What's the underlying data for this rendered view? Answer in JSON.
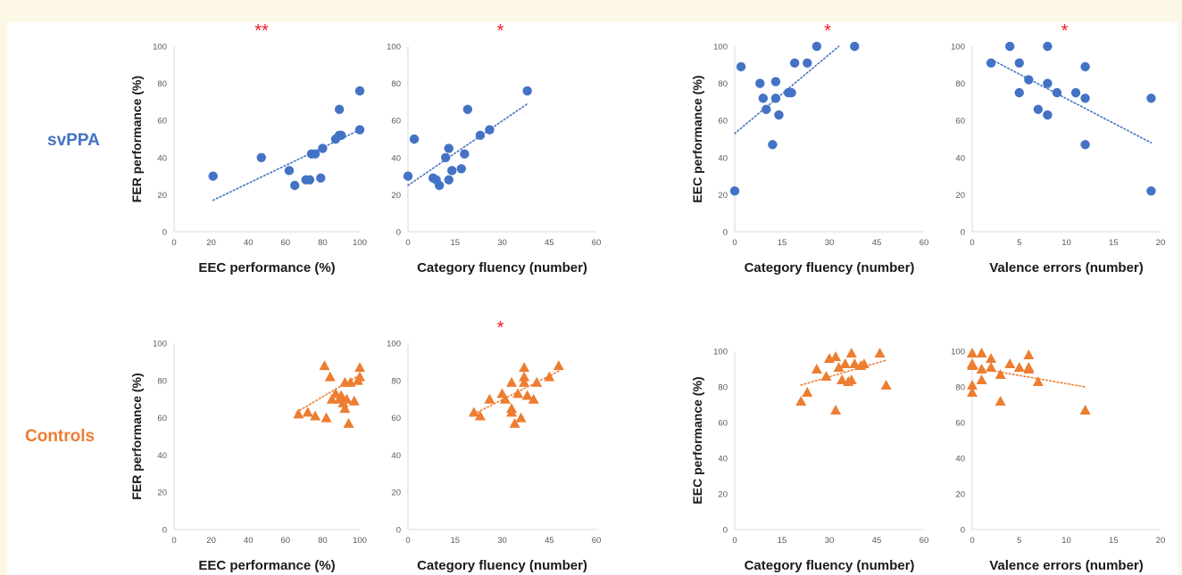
{
  "row_labels": [
    {
      "text": "svPPA",
      "color": "#4472c4"
    },
    {
      "text": "Controls",
      "color": "#ed7d31"
    }
  ],
  "colors": {
    "svppa": "#4472c4",
    "controls": "#ed7d31",
    "significance": "#ee1c25",
    "axis": "#d9d9d9",
    "tick_text": "#595959"
  },
  "chart_data": [
    {
      "id": "svppa-fer-vs-eec",
      "type": "scatter",
      "group": "svppa",
      "marker": "circle",
      "xlabel": "EEC performance (%)",
      "ylabel": "FER performance (%)",
      "xlim": [
        0,
        100
      ],
      "ylim": [
        0,
        100
      ],
      "xticks": [
        0,
        20,
        40,
        60,
        80,
        100
      ],
      "yticks": [
        0,
        20,
        40,
        60,
        80,
        100
      ],
      "significance": "**",
      "grid": false,
      "trendline": {
        "style": "dotted",
        "x": [
          21,
          100
        ],
        "y": [
          17,
          55
        ]
      },
      "points": [
        [
          21,
          30
        ],
        [
          47,
          40
        ],
        [
          62,
          33
        ],
        [
          65,
          25
        ],
        [
          71,
          28
        ],
        [
          73,
          28
        ],
        [
          74,
          42
        ],
        [
          76,
          42
        ],
        [
          79,
          29
        ],
        [
          80,
          45
        ],
        [
          87,
          50
        ],
        [
          89,
          52
        ],
        [
          89,
          66
        ],
        [
          90,
          52
        ],
        [
          100,
          76
        ],
        [
          100,
          55
        ]
      ]
    },
    {
      "id": "svppa-fer-vs-fluency",
      "type": "scatter",
      "group": "svppa",
      "marker": "circle",
      "xlabel": "Category fluency (number)",
      "ylabel": "",
      "xlim": [
        0,
        60
      ],
      "ylim": [
        0,
        100
      ],
      "xticks": [
        0,
        15,
        30,
        45,
        60
      ],
      "yticks": [
        0,
        20,
        40,
        60,
        80,
        100
      ],
      "significance": "*",
      "grid": false,
      "trendline": {
        "style": "dotted",
        "x": [
          0,
          38
        ],
        "y": [
          25,
          69
        ]
      },
      "points": [
        [
          0,
          30
        ],
        [
          2,
          50
        ],
        [
          8,
          29
        ],
        [
          9,
          28
        ],
        [
          10,
          25
        ],
        [
          12,
          40
        ],
        [
          13,
          45
        ],
        [
          13,
          28
        ],
        [
          14,
          33
        ],
        [
          17,
          34
        ],
        [
          18,
          42
        ],
        [
          19,
          66
        ],
        [
          23,
          52
        ],
        [
          26,
          55
        ],
        [
          38,
          76
        ]
      ]
    },
    {
      "id": "svppa-eec-vs-fluency",
      "type": "scatter",
      "group": "svppa",
      "marker": "circle",
      "xlabel": "Category fluency (number)",
      "ylabel": "EEC performance (%)",
      "xlim": [
        0,
        60
      ],
      "ylim": [
        0,
        100
      ],
      "xticks": [
        0,
        15,
        30,
        45,
        60
      ],
      "yticks": [
        0,
        20,
        40,
        60,
        80,
        100
      ],
      "significance": "*",
      "grid": false,
      "trendline": {
        "style": "dotted",
        "x": [
          0,
          33
        ],
        "y": [
          53,
          100
        ]
      },
      "points": [
        [
          0,
          22
        ],
        [
          2,
          89
        ],
        [
          8,
          80
        ],
        [
          9,
          72
        ],
        [
          10,
          66
        ],
        [
          12,
          47
        ],
        [
          13,
          72
        ],
        [
          13,
          81
        ],
        [
          14,
          63
        ],
        [
          17,
          75
        ],
        [
          18,
          75
        ],
        [
          19,
          91
        ],
        [
          23,
          91
        ],
        [
          26,
          100
        ],
        [
          38,
          100
        ]
      ]
    },
    {
      "id": "svppa-eec-vs-valence",
      "type": "scatter",
      "group": "svppa",
      "marker": "circle",
      "xlabel": "Valence errors (number)",
      "ylabel": "",
      "xlim": [
        0,
        20
      ],
      "ylim": [
        0,
        100
      ],
      "xticks": [
        0,
        5,
        10,
        15,
        20
      ],
      "yticks": [
        0,
        20,
        40,
        60,
        80,
        100
      ],
      "significance": "*",
      "grid": false,
      "trendline": {
        "style": "dotted",
        "x": [
          2,
          19
        ],
        "y": [
          93,
          48
        ]
      },
      "points": [
        [
          2,
          91
        ],
        [
          4,
          100
        ],
        [
          5,
          91
        ],
        [
          5,
          75
        ],
        [
          6,
          82
        ],
        [
          7,
          66
        ],
        [
          8,
          100
        ],
        [
          8,
          80
        ],
        [
          8,
          63
        ],
        [
          9,
          75
        ],
        [
          11,
          75
        ],
        [
          12,
          89
        ],
        [
          12,
          72
        ],
        [
          12,
          47
        ],
        [
          19,
          72
        ],
        [
          19,
          22
        ]
      ]
    },
    {
      "id": "controls-fer-vs-eec",
      "type": "scatter",
      "group": "controls",
      "marker": "triangle",
      "xlabel": "EEC performance (%)",
      "ylabel": "FER performance (%)",
      "xlim": [
        0,
        100
      ],
      "ylim": [
        0,
        100
      ],
      "xticks": [
        0,
        20,
        40,
        60,
        80,
        100
      ],
      "yticks": [
        0,
        20,
        40,
        60,
        80,
        100
      ],
      "significance": "",
      "grid": false,
      "trendline": {
        "style": "dotted",
        "x": [
          66,
          100
        ],
        "y": [
          63,
          83
        ]
      },
      "points": [
        [
          67,
          62
        ],
        [
          72,
          63
        ],
        [
          76,
          61
        ],
        [
          81,
          88
        ],
        [
          82,
          60
        ],
        [
          84,
          82
        ],
        [
          85,
          70
        ],
        [
          87,
          73
        ],
        [
          89,
          70
        ],
        [
          90,
          72
        ],
        [
          91,
          68
        ],
        [
          92,
          79
        ],
        [
          92,
          65
        ],
        [
          93,
          70
        ],
        [
          94,
          57
        ],
        [
          95,
          79
        ],
        [
          97,
          69
        ],
        [
          99,
          80
        ],
        [
          100,
          87
        ],
        [
          100,
          82
        ]
      ]
    },
    {
      "id": "controls-fer-vs-fluency",
      "type": "scatter",
      "group": "controls",
      "marker": "triangle",
      "xlabel": "Category fluency (number)",
      "ylabel": "",
      "xlim": [
        0,
        60
      ],
      "ylim": [
        0,
        100
      ],
      "xticks": [
        0,
        15,
        30,
        45,
        60
      ],
      "yticks": [
        0,
        20,
        40,
        60,
        80,
        100
      ],
      "significance": "*",
      "grid": false,
      "trendline": {
        "style": "dotted",
        "x": [
          21,
          48
        ],
        "y": [
          62,
          85
        ]
      },
      "points": [
        [
          21,
          63
        ],
        [
          23,
          61
        ],
        [
          26,
          70
        ],
        [
          30,
          73
        ],
        [
          31,
          70
        ],
        [
          33,
          79
        ],
        [
          33,
          65
        ],
        [
          33,
          63
        ],
        [
          34,
          57
        ],
        [
          35,
          73
        ],
        [
          36,
          60
        ],
        [
          37,
          87
        ],
        [
          37,
          82
        ],
        [
          37,
          79
        ],
        [
          38,
          72
        ],
        [
          40,
          70
        ],
        [
          41,
          79
        ],
        [
          45,
          82
        ],
        [
          48,
          88
        ]
      ]
    },
    {
      "id": "controls-eec-vs-fluency",
      "type": "scatter",
      "group": "controls",
      "marker": "triangle",
      "xlabel": "Category fluency (number)",
      "ylabel": "EEC performance (%)",
      "xlim": [
        0,
        60
      ],
      "ylim": [
        0,
        100
      ],
      "xticks": [
        0,
        15,
        30,
        45,
        60
      ],
      "yticks": [
        0,
        20,
        40,
        60,
        80,
        100
      ],
      "significance": "",
      "grid": false,
      "trendline": {
        "style": "dotted",
        "x": [
          21,
          48
        ],
        "y": [
          81,
          95
        ]
      },
      "points": [
        [
          21,
          72
        ],
        [
          23,
          77
        ],
        [
          26,
          90
        ],
        [
          29,
          86
        ],
        [
          30,
          96
        ],
        [
          32,
          67
        ],
        [
          32,
          97
        ],
        [
          33,
          91
        ],
        [
          34,
          84
        ],
        [
          35,
          93
        ],
        [
          36,
          83
        ],
        [
          37,
          84
        ],
        [
          37,
          99
        ],
        [
          38,
          93
        ],
        [
          40,
          92
        ],
        [
          41,
          93
        ],
        [
          46,
          99
        ],
        [
          48,
          81
        ]
      ]
    },
    {
      "id": "controls-eec-vs-valence",
      "type": "scatter",
      "group": "controls",
      "marker": "triangle",
      "xlabel": "Valence errors (number)",
      "ylabel": "",
      "xlim": [
        0,
        20
      ],
      "ylim": [
        0,
        100
      ],
      "xticks": [
        0,
        5,
        10,
        15,
        20
      ],
      "yticks": [
        0,
        20,
        40,
        60,
        80,
        100
      ],
      "significance": "",
      "grid": false,
      "trendline": {
        "style": "dotted",
        "x": [
          0,
          12
        ],
        "y": [
          91,
          80
        ]
      },
      "points": [
        [
          0,
          99
        ],
        [
          0,
          93
        ],
        [
          0,
          92
        ],
        [
          0,
          81
        ],
        [
          0,
          77
        ],
        [
          1,
          99
        ],
        [
          1,
          90
        ],
        [
          1,
          84
        ],
        [
          2,
          96
        ],
        [
          2,
          91
        ],
        [
          3,
          87
        ],
        [
          3,
          72
        ],
        [
          4,
          93
        ],
        [
          5,
          91
        ],
        [
          6,
          98
        ],
        [
          6,
          91
        ],
        [
          6,
          90
        ],
        [
          7,
          83
        ],
        [
          12,
          67
        ]
      ]
    }
  ]
}
